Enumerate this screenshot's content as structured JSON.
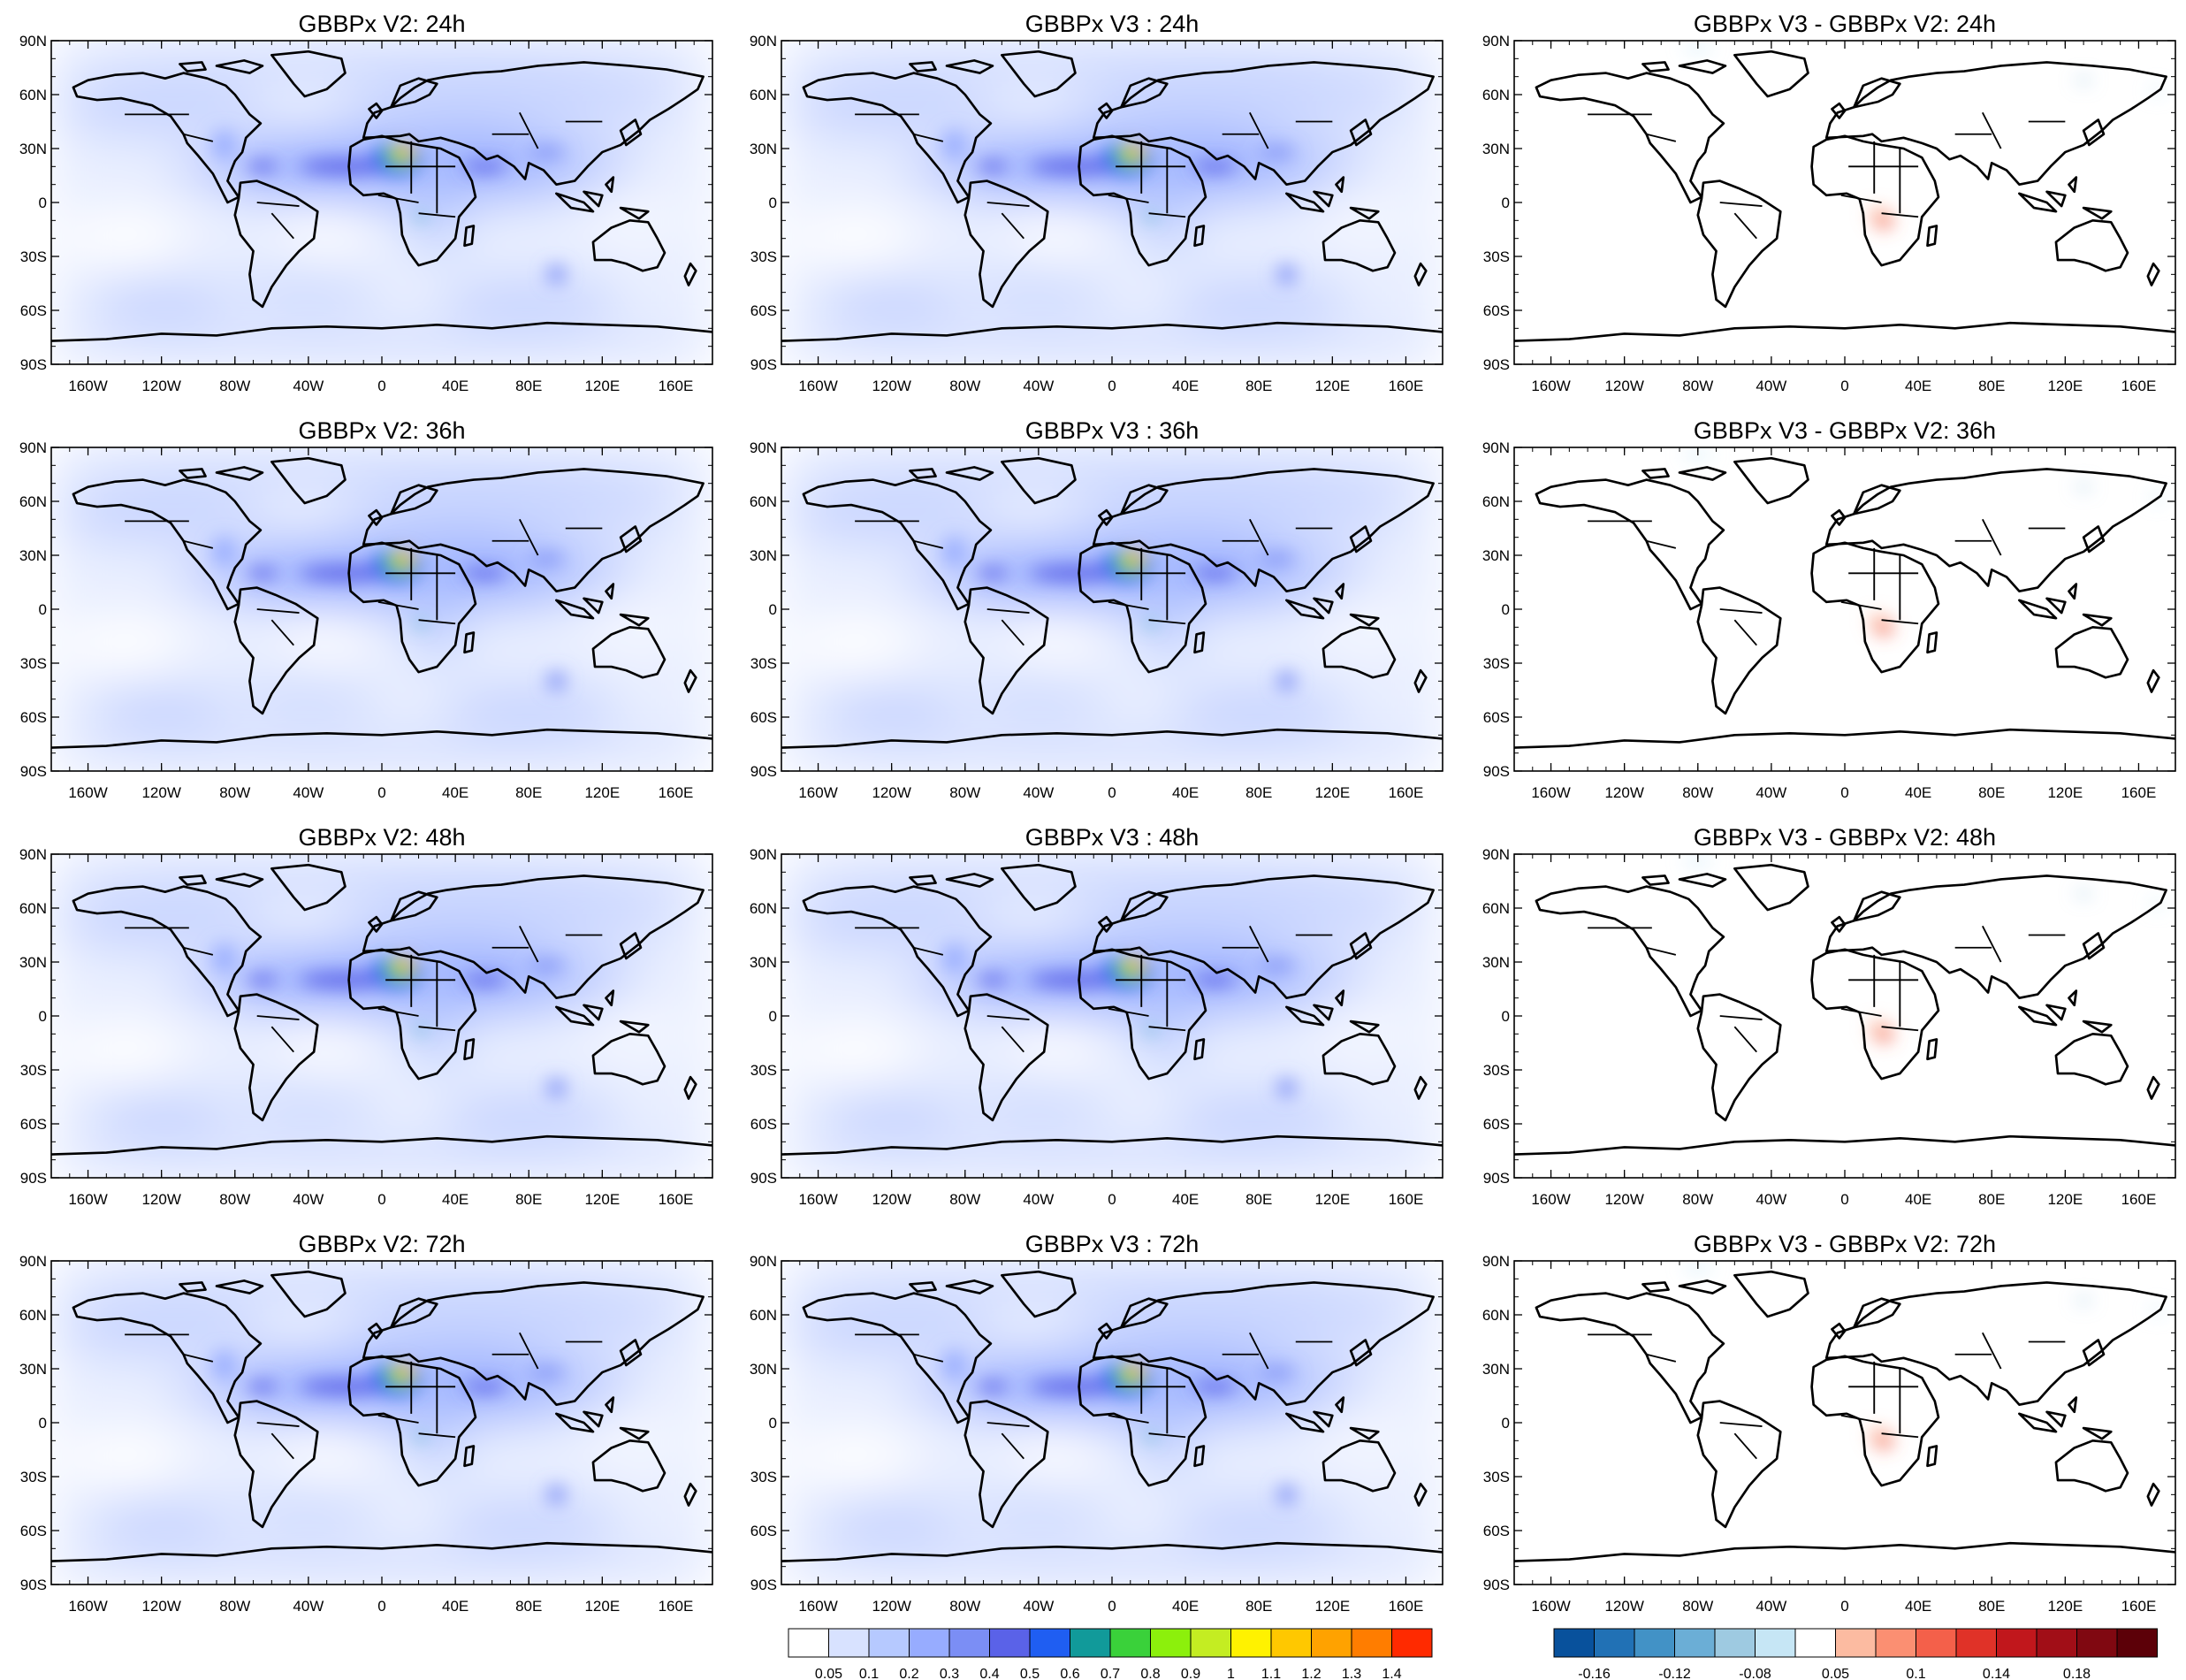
{
  "panels": [
    {
      "title": "GBBPx V2: 24h",
      "kind": "field",
      "lead": "24h"
    },
    {
      "title": "GBBPx V3 : 24h",
      "kind": "field",
      "lead": "24h"
    },
    {
      "title": "GBBPx V3 - GBBPx V2: 24h",
      "kind": "difference",
      "lead": "24h"
    },
    {
      "title": "GBBPx V2: 36h",
      "kind": "field",
      "lead": "36h"
    },
    {
      "title": "GBBPx V3 : 36h",
      "kind": "field",
      "lead": "36h"
    },
    {
      "title": "GBBPx V3 - GBBPx V2: 36h",
      "kind": "difference",
      "lead": "36h"
    },
    {
      "title": "GBBPx V2: 48h",
      "kind": "field",
      "lead": "48h"
    },
    {
      "title": "GBBPx V3 : 48h",
      "kind": "field",
      "lead": "48h"
    },
    {
      "title": "GBBPx V3 - GBBPx V2: 48h",
      "kind": "difference",
      "lead": "48h"
    },
    {
      "title": "GBBPx V2: 72h",
      "kind": "field",
      "lead": "72h"
    },
    {
      "title": "GBBPx V3 : 72h",
      "kind": "field",
      "lead": "72h"
    },
    {
      "title": "GBBPx V3 - GBBPx V2: 72h",
      "kind": "difference",
      "lead": "72h"
    }
  ],
  "lat_labels": [
    "90N",
    "60N",
    "30N",
    "0",
    "30S",
    "60S",
    "90S"
  ],
  "lat_values": [
    90,
    60,
    30,
    0,
    -30,
    -60,
    -90
  ],
  "lon_labels": [
    "160W",
    "120W",
    "80W",
    "40W",
    "0",
    "40E",
    "80E",
    "120E",
    "160E"
  ],
  "lon_values": [
    -160,
    -120,
    -80,
    -40,
    0,
    40,
    80,
    120,
    160
  ],
  "colorbar_field": {
    "colors": [
      "#ffffff",
      "#d8e2ff",
      "#b6c9ff",
      "#97acff",
      "#7b8ef5",
      "#5a62e8",
      "#1f5ef2",
      "#119a9a",
      "#3ad13a",
      "#8cf00c",
      "#c4ed22",
      "#fff200",
      "#ffc800",
      "#ffa200",
      "#ff7d00",
      "#ff2a00"
    ],
    "labels": [
      "0.05",
      "0.1",
      "0.2",
      "0.3",
      "0.4",
      "0.5",
      "0.6",
      "0.7",
      "0.8",
      "0.9",
      "1",
      "1.1",
      "1.2",
      "1.3",
      "1.4"
    ]
  },
  "colorbar_diff": {
    "colors": [
      "#08519c",
      "#2171b5",
      "#4292c6",
      "#6baed6",
      "#9ecae1",
      "#c6e6f5",
      "#ffffff",
      "#fcbba1",
      "#fb8f72",
      "#f4604a",
      "#e03228",
      "#c1171c",
      "#a10e17",
      "#800811",
      "#5c0008"
    ],
    "labels": [
      "-0.16",
      "-0.12",
      "-0.08",
      "0.05",
      "0.1",
      "0.14",
      "0.18"
    ],
    "label_after_box": [
      1,
      3,
      5,
      7,
      9,
      11,
      13
    ]
  }
}
